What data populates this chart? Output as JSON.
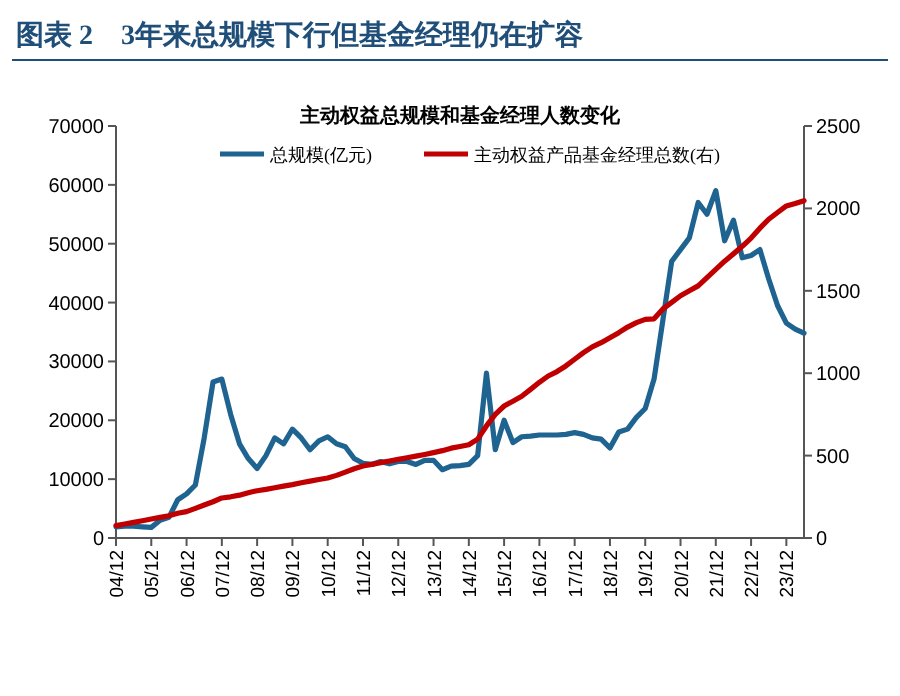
{
  "chart_data": {
    "type": "line",
    "title": "图表 2　3年来总规模下行但基金经理仍在扩容",
    "subtitle": "主动权益总规模和基金经理人数变化",
    "categories": [
      "04/12",
      null,
      null,
      null,
      "05/12",
      null,
      null,
      null,
      "06/12",
      null,
      null,
      null,
      "07/12",
      null,
      null,
      null,
      "08/12",
      null,
      null,
      null,
      "09/12",
      null,
      null,
      null,
      "10/12",
      null,
      null,
      null,
      "11/12",
      null,
      null,
      null,
      "12/12",
      null,
      null,
      null,
      "13/12",
      null,
      null,
      null,
      "14/12",
      null,
      null,
      null,
      "15/12",
      null,
      null,
      null,
      "16/12",
      null,
      null,
      null,
      "17/12",
      null,
      null,
      null,
      "18/12",
      null,
      null,
      null,
      "19/12",
      null,
      null,
      null,
      "20/12",
      null,
      null,
      null,
      "21/12",
      null,
      null,
      null,
      "22/12",
      null,
      null,
      null,
      "23/12",
      null,
      null
    ],
    "series": [
      {
        "name": "总规模(亿元)",
        "color": "#1f6391",
        "values": [
          1900,
          2000,
          2000,
          1900,
          1800,
          3000,
          3500,
          6500,
          7500,
          9000,
          17000,
          26500,
          27000,
          21000,
          16000,
          13500,
          11800,
          14000,
          17000,
          16000,
          18500,
          17000,
          15000,
          16500,
          17200,
          16000,
          15500,
          13500,
          12700,
          12500,
          13000,
          12600,
          13000,
          13000,
          12500,
          13200,
          13200,
          11600,
          12200,
          12300,
          12500,
          14000,
          28000,
          15000,
          20000,
          16200,
          17200,
          17300,
          17500,
          17500,
          17500,
          17600,
          17900,
          17600,
          17000,
          16800,
          15300,
          18000,
          18500,
          20500,
          22000,
          27000,
          37000,
          47000,
          49000,
          51000,
          57000,
          55000,
          59000,
          50500,
          54000,
          47600,
          48000,
          49000,
          44000,
          39500,
          36500,
          35500,
          34800
        ]
      },
      {
        "name": "主动权益产品基金经理总数(右)",
        "color": "#c00000",
        "axis": "y2",
        "values": [
          75,
          85,
          95,
          105,
          115,
          125,
          135,
          150,
          160,
          180,
          200,
          220,
          243,
          250,
          260,
          275,
          287,
          295,
          305,
          315,
          324,
          335,
          345,
          355,
          364,
          380,
          400,
          420,
          437,
          447,
          457,
          467,
          477,
          487,
          497,
          507,
          518,
          530,
          545,
          555,
          566,
          600,
          680,
          750,
          801,
          830,
          860,
          902,
          945,
          983,
          1010,
          1044,
          1085,
          1125,
          1160,
          1185,
          1215,
          1246,
          1280,
          1307,
          1327,
          1330,
          1390,
          1430,
          1470,
          1500,
          1530,
          1580,
          1630,
          1680,
          1724,
          1770,
          1820,
          1880,
          1934,
          1975,
          2015,
          2030,
          2047
        ]
      }
    ],
    "ylim": [
      0,
      70000
    ],
    "yticks": [
      0,
      10000,
      20000,
      30000,
      40000,
      50000,
      60000,
      70000
    ],
    "y2lim": [
      0,
      2500
    ],
    "y2ticks": [
      0,
      500,
      1000,
      1500,
      2000,
      2500
    ],
    "legend": "top"
  }
}
